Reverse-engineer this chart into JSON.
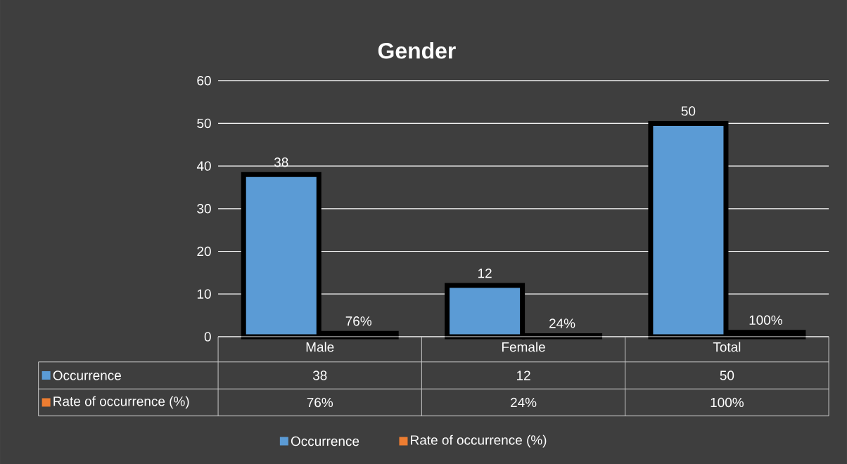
{
  "chart_data": {
    "type": "bar",
    "title": "Gender",
    "categories": [
      "Male",
      "Female",
      "Total"
    ],
    "series": [
      {
        "name": "Occurrence",
        "color": "#5b9bd5",
        "values": [
          38,
          12,
          50
        ],
        "value_labels": [
          "38",
          "12",
          "50"
        ]
      },
      {
        "name": "Rate of occurrence (%)",
        "color": "#ed7d31",
        "values": [
          0.76,
          0.24,
          1
        ],
        "value_labels": [
          "76%",
          "24%",
          "100%"
        ]
      }
    ],
    "ylim": [
      0,
      60
    ],
    "yticks": [
      0,
      10,
      20,
      30,
      40,
      50,
      60
    ],
    "grid": "y",
    "legend": "bottom"
  }
}
